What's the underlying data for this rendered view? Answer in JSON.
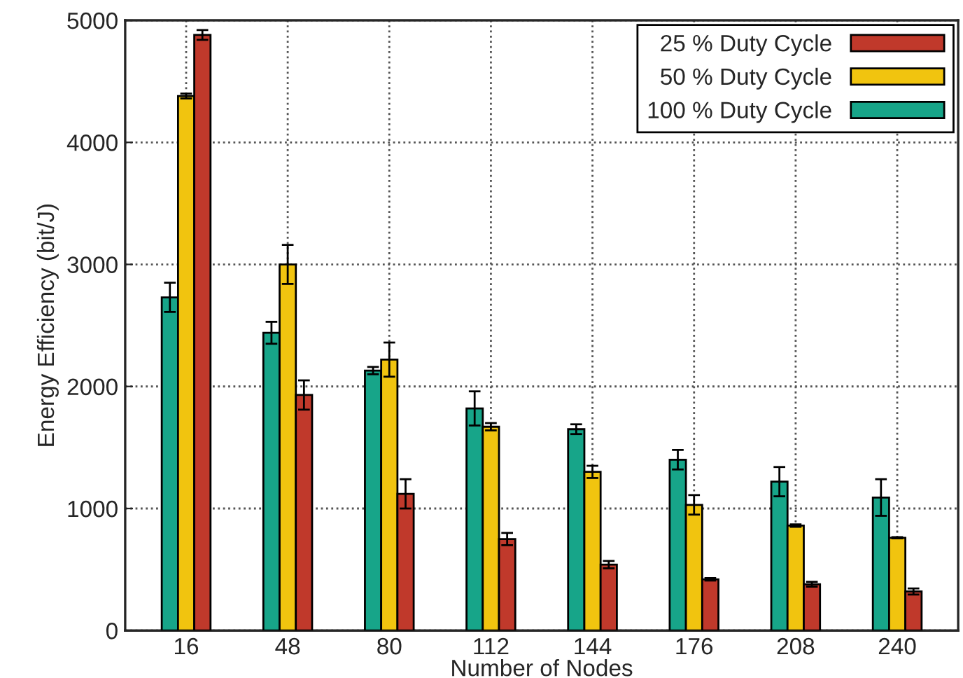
{
  "chart_data": {
    "type": "bar",
    "xlabel": "Number of Nodes",
    "ylabel": "Energy Efficiency (bit/J)",
    "categories": [
      "16",
      "48",
      "80",
      "112",
      "144",
      "176",
      "208",
      "240"
    ],
    "series": [
      {
        "name": "100 % Duty Cycle",
        "color": "#17a589",
        "values": [
          2730,
          2440,
          2130,
          1820,
          1650,
          1400,
          1220,
          1090
        ],
        "errors": [
          120,
          90,
          30,
          140,
          40,
          80,
          120,
          150
        ]
      },
      {
        "name": "50 % Duty Cycle",
        "color": "#f1c40f",
        "values": [
          4380,
          3000,
          2220,
          1670,
          1300,
          1030,
          860,
          760
        ],
        "errors": [
          20,
          160,
          140,
          30,
          50,
          80,
          10,
          5
        ]
      },
      {
        "name": "25 % Duty Cycle",
        "color": "#c0392b",
        "values": [
          4880,
          1930,
          1120,
          750,
          540,
          420,
          380,
          320
        ],
        "errors": [
          40,
          120,
          120,
          50,
          30,
          10,
          20,
          25
        ]
      }
    ],
    "ylim": [
      0,
      5000
    ],
    "yticks": [
      0,
      1000,
      2000,
      3000,
      4000,
      5000
    ],
    "grid": true,
    "legend": "top right"
  }
}
